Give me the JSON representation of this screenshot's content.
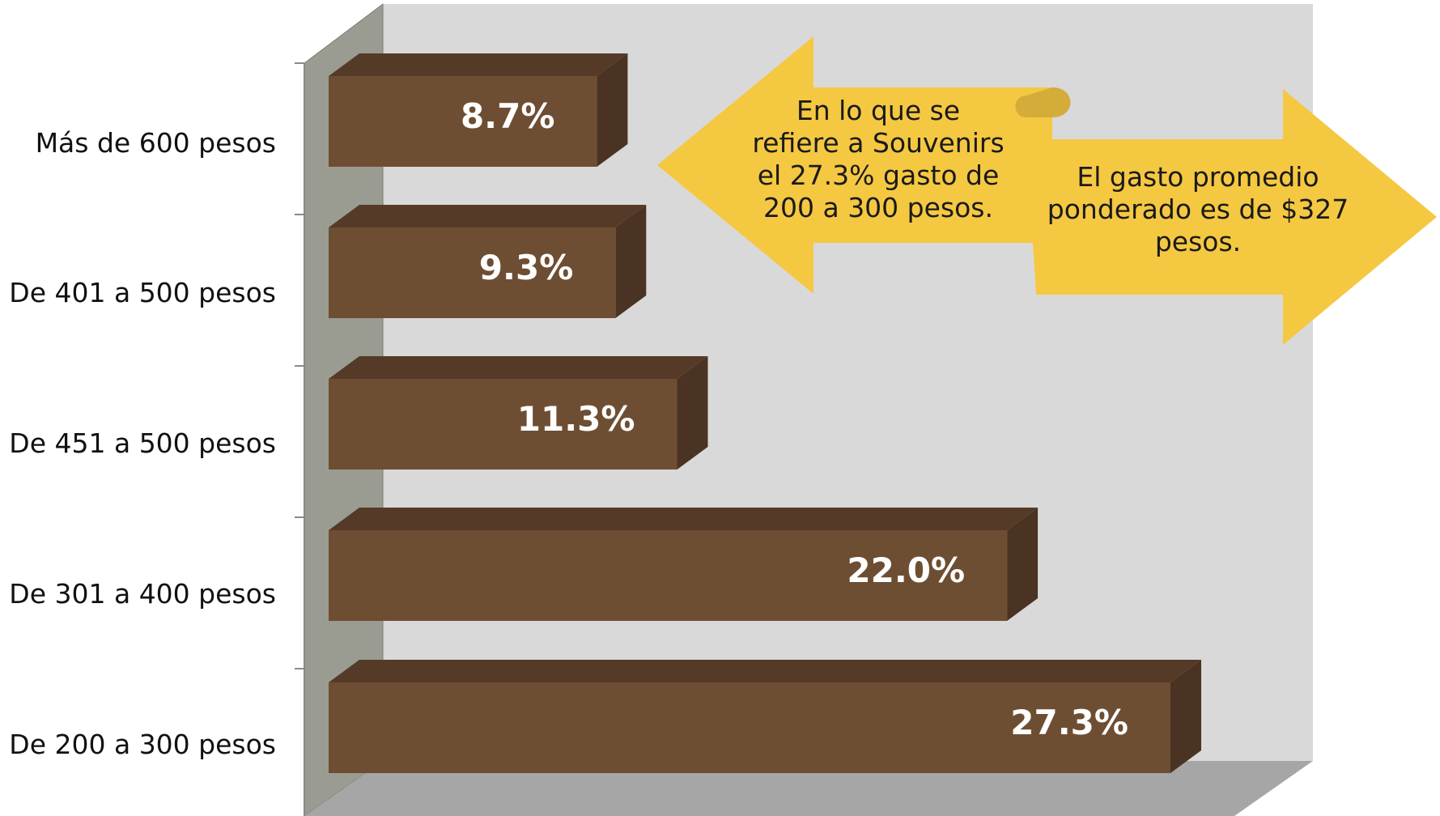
{
  "chart_data": {
    "type": "bar",
    "orientation": "horizontal",
    "style": "3d",
    "categories": [
      "Más de 600 pesos",
      "De 401 a 500 pesos",
      "De 451 a 500 pesos",
      "De 301 a 400 pesos",
      "De 200 a 300 pesos"
    ],
    "values": [
      8.7,
      9.3,
      11.3,
      22.0,
      27.3
    ],
    "value_labels": [
      "8.7%",
      "9.3%",
      "11.3%",
      "22.0%",
      "27.3%"
    ],
    "xlim": [
      0,
      30
    ],
    "title": "",
    "xlabel": "",
    "ylabel": "",
    "legend": "none",
    "grid": false
  },
  "annotations": {
    "left_arrow_text": "En lo que se\nrefiere a Souvenirs\nel 27.3% gasto de\n200 a 300 pesos.",
    "right_arrow_text": "El gasto promedio\nponderado es de $327\npesos."
  },
  "colors": {
    "bar_front": "#6e4e33",
    "bar_top": "#543a27",
    "bar_side": "#4a3322",
    "back_wall": "#d9d9d9",
    "side_wall": "#9a9c92",
    "floor": "#a6a6a6",
    "arrow": "#f5c842",
    "arrow_shadow": "#d4ac3a"
  }
}
